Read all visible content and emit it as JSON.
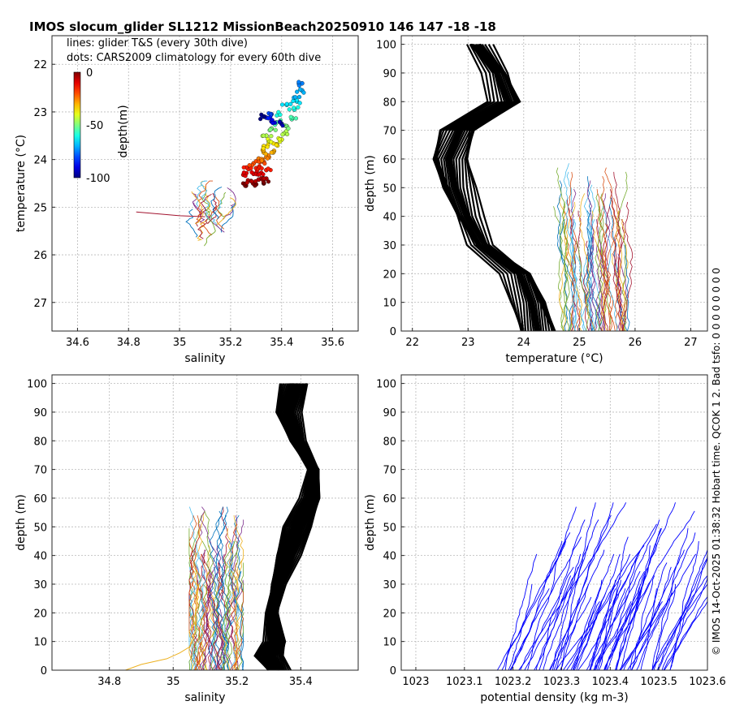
{
  "figure_title": "IMOS slocum_glider SL1212 MissionBeach20250910 146  147  -18  -18",
  "side_text": "© IMOS 14-Oct-2025 01:38:32 Hobart time. QCOK 1  2. Bad tsfo: 0  0  0  0      0  0  0  0",
  "colors": {
    "black": "#000000",
    "blue": "#0000ff",
    "gold": "#edb120",
    "purple": "#7e2f8e",
    "green": "#77ac30",
    "cyan": "#4dbeee",
    "red": "#a2142f",
    "orange": "#d95319",
    "navy": "#0072bd"
  },
  "chart_data": [
    {
      "type": "scatter",
      "panel": "ts",
      "title": "",
      "xlabel": "salinity",
      "ylabel": "temperature (°C)",
      "xlim": [
        34.5,
        35.7
      ],
      "ylim": [
        21.4,
        27.6
      ],
      "xticks": [
        "34.6",
        "34.8",
        "35",
        "35.2",
        "35.4",
        "35.6"
      ],
      "xtick_values": [
        34.6,
        34.8,
        35.0,
        35.2,
        35.4,
        35.6
      ],
      "yticks": [
        "22",
        "23",
        "24",
        "25",
        "26",
        "27"
      ],
      "ytick_values": [
        22,
        23,
        24,
        25,
        26,
        27
      ],
      "grid": true,
      "legend_lines": [
        "lines: glider T&S (every 30th dive)",
        "dots: CARS2009 climatology for every 60th dive"
      ],
      "colorbar": {
        "label": "depth(m)",
        "ticks": [
          "0",
          "-50",
          "-100"
        ],
        "tick_values": [
          0,
          -50,
          -100
        ],
        "range": [
          -100,
          0
        ],
        "colormap": "jet"
      },
      "glider_lines_range": {
        "salinity": [
          34.82,
          35.22
        ],
        "temperature": [
          24.45,
          25.95
        ]
      },
      "climatology_dots": [
        {
          "depth_m": 0,
          "salinity": 35.26,
          "temperature": 24.55
        },
        {
          "depth_m": 0,
          "salinity": 35.3,
          "temperature": 24.52
        },
        {
          "depth_m": 0,
          "salinity": 35.33,
          "temperature": 24.5
        },
        {
          "depth_m": 5,
          "salinity": 35.28,
          "temperature": 24.45
        },
        {
          "depth_m": 5,
          "salinity": 35.31,
          "temperature": 24.42
        },
        {
          "depth_m": 5,
          "salinity": 35.34,
          "temperature": 24.4
        },
        {
          "depth_m": 10,
          "salinity": 35.25,
          "temperature": 24.32
        },
        {
          "depth_m": 10,
          "salinity": 35.29,
          "temperature": 24.3
        },
        {
          "depth_m": 10,
          "salinity": 35.32,
          "temperature": 24.28
        },
        {
          "depth_m": 15,
          "salinity": 35.27,
          "temperature": 24.2
        },
        {
          "depth_m": 15,
          "salinity": 35.3,
          "temperature": 24.18
        },
        {
          "depth_m": 15,
          "salinity": 35.34,
          "temperature": 24.22
        },
        {
          "depth_m": 20,
          "salinity": 35.29,
          "temperature": 24.08
        },
        {
          "depth_m": 20,
          "salinity": 35.33,
          "temperature": 24.05
        },
        {
          "depth_m": 25,
          "salinity": 35.31,
          "temperature": 23.98
        },
        {
          "depth_m": 25,
          "salinity": 35.35,
          "temperature": 23.95
        },
        {
          "depth_m": 30,
          "salinity": 35.33,
          "temperature": 23.85
        },
        {
          "depth_m": 30,
          "salinity": 35.37,
          "temperature": 23.82
        },
        {
          "depth_m": 35,
          "salinity": 35.33,
          "temperature": 23.72
        },
        {
          "depth_m": 35,
          "salinity": 35.38,
          "temperature": 23.68
        },
        {
          "depth_m": 40,
          "salinity": 35.35,
          "temperature": 23.62
        },
        {
          "depth_m": 40,
          "salinity": 35.4,
          "temperature": 23.58
        },
        {
          "depth_m": 45,
          "salinity": 35.34,
          "temperature": 23.5
        },
        {
          "depth_m": 45,
          "salinity": 35.41,
          "temperature": 23.45
        },
        {
          "depth_m": 50,
          "salinity": 35.36,
          "temperature": 23.35
        },
        {
          "depth_m": 50,
          "salinity": 35.42,
          "temperature": 23.3
        },
        {
          "depth_m": 55,
          "salinity": 35.38,
          "temperature": 23.22
        },
        {
          "depth_m": 55,
          "salinity": 35.44,
          "temperature": 23.15
        },
        {
          "depth_m": 60,
          "salinity": 35.39,
          "temperature": 23.05
        },
        {
          "depth_m": 60,
          "salinity": 35.45,
          "temperature": 22.95
        },
        {
          "depth_m": 65,
          "salinity": 35.42,
          "temperature": 22.85
        },
        {
          "depth_m": 65,
          "salinity": 35.46,
          "temperature": 22.78
        },
        {
          "depth_m": 70,
          "salinity": 35.45,
          "temperature": 22.7
        },
        {
          "depth_m": 70,
          "salinity": 35.48,
          "temperature": 22.55
        },
        {
          "depth_m": 75,
          "salinity": 35.48,
          "temperature": 22.4
        },
        {
          "depth_m": 80,
          "salinity": 35.36,
          "temperature": 23.05
        },
        {
          "depth_m": 85,
          "salinity": 35.34,
          "temperature": 23.12
        },
        {
          "depth_m": 90,
          "salinity": 35.36,
          "temperature": 23.2
        },
        {
          "depth_m": 95,
          "salinity": 35.4,
          "temperature": 23.25
        },
        {
          "depth_m": 100,
          "salinity": 35.33,
          "temperature": 23.1
        }
      ]
    },
    {
      "type": "line",
      "panel": "temperature-depth",
      "title": "",
      "xlabel": "temperature (°C)",
      "ylabel": "depth (m)",
      "xlim": [
        21.8,
        27.3
      ],
      "ylim": [
        103,
        0
      ],
      "xticks": [
        "22",
        "23",
        "24",
        "25",
        "26",
        "27"
      ],
      "xtick_values": [
        22,
        23,
        24,
        25,
        26,
        27
      ],
      "yticks": [
        "0",
        "10",
        "20",
        "30",
        "40",
        "50",
        "60",
        "70",
        "80",
        "90",
        "100"
      ],
      "ytick_values": [
        0,
        10,
        20,
        30,
        40,
        50,
        60,
        70,
        80,
        90,
        100
      ],
      "grid": true,
      "climatology_profile": {
        "depth": [
          0,
          10,
          20,
          30,
          40,
          50,
          60,
          70,
          80,
          90,
          100
        ],
        "temperature": [
          24.25,
          24.15,
          23.95,
          23.25,
          22.95,
          22.75,
          22.65,
          22.85,
          23.75,
          23.55,
          23.15
        ]
      },
      "climatology_spread": [
        -0.25,
        0.25
      ],
      "glider_profiles_range": {
        "temperature": [
          24.5,
          26.0
        ],
        "depth": [
          0,
          60
        ]
      }
    },
    {
      "type": "line",
      "panel": "salinity-depth",
      "title": "",
      "xlabel": "salinity",
      "ylabel": "depth (m)",
      "xlim": [
        34.62,
        35.58
      ],
      "ylim": [
        103,
        0
      ],
      "xticks": [
        "34.8",
        "35",
        "35.2",
        "35.4"
      ],
      "xtick_values": [
        34.8,
        35.0,
        35.2,
        35.4
      ],
      "yticks": [
        "0",
        "10",
        "20",
        "30",
        "40",
        "50",
        "60",
        "70",
        "80",
        "90",
        "100"
      ],
      "ytick_values": [
        0,
        10,
        20,
        30,
        40,
        50,
        60,
        70,
        80,
        90,
        100
      ],
      "grid": true,
      "climatology_profile": {
        "depth": [
          0,
          5,
          10,
          20,
          30,
          40,
          50,
          60,
          70,
          80,
          90,
          100
        ],
        "salinity": [
          35.33,
          35.3,
          35.32,
          35.31,
          35.33,
          35.36,
          35.39,
          35.43,
          35.44,
          35.39,
          35.36,
          35.38
        ]
      },
      "climatology_spread": [
        -0.03,
        0.03
      ],
      "glider_profiles_range": {
        "salinity": [
          35.05,
          35.22
        ],
        "depth": [
          0,
          60
        ]
      },
      "outlier_profile": {
        "depth": [
          0,
          2,
          4,
          6,
          8,
          10,
          14,
          20,
          30
        ],
        "salinity": [
          34.85,
          34.9,
          34.98,
          35.02,
          35.05,
          35.06,
          35.07,
          35.07,
          35.08
        ]
      }
    },
    {
      "type": "line",
      "panel": "density-depth",
      "title": "",
      "xlabel": "potential density (kg m-3)",
      "ylabel": "depth (m)",
      "xlim": [
        1022.97,
        1023.6
      ],
      "ylim": [
        103,
        0
      ],
      "xticks": [
        "1023",
        "1023.1",
        "1023.2",
        "1023.3",
        "1023.4",
        "1023.5",
        "1023.6"
      ],
      "xtick_values": [
        1023.0,
        1023.1,
        1023.2,
        1023.3,
        1023.4,
        1023.5,
        1023.6
      ],
      "yticks": [
        "0",
        "10",
        "20",
        "30",
        "40",
        "50",
        "60",
        "70",
        "80",
        "90",
        "100"
      ],
      "ytick_values": [
        0,
        10,
        20,
        30,
        40,
        50,
        60,
        70,
        80,
        90,
        100
      ],
      "grid": true,
      "glider_profiles_range": {
        "density": [
          1023.15,
          1023.6
        ],
        "depth": [
          0,
          60
        ]
      }
    }
  ]
}
